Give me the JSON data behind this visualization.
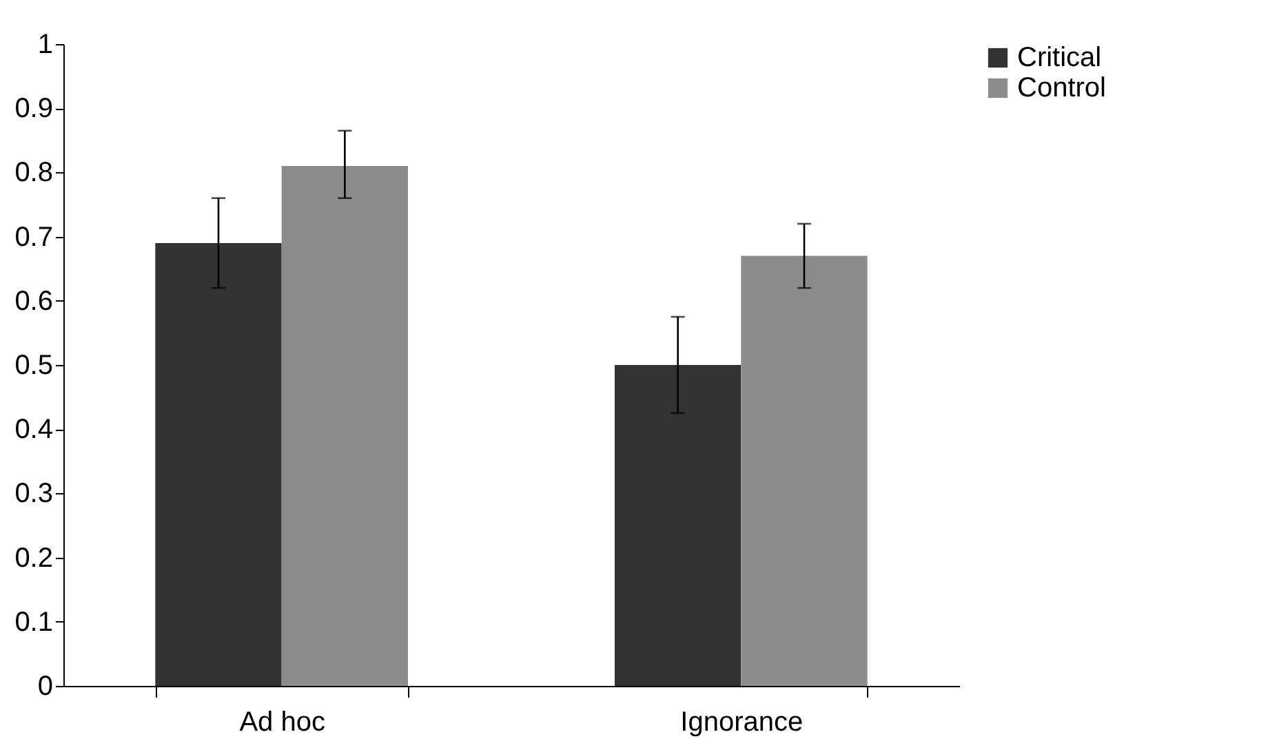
{
  "chart_data": {
    "type": "bar",
    "categories": [
      "Ad hoc",
      "Ignorance"
    ],
    "series": [
      {
        "name": "Critical",
        "color": "#333333",
        "values": [
          0.69,
          0.5
        ],
        "errors": [
          [
            0.62,
            0.76
          ],
          [
            0.425,
            0.575
          ]
        ]
      },
      {
        "name": "Control",
        "color": "#8c8c8c",
        "values": [
          0.81,
          0.67
        ],
        "errors": [
          [
            0.76,
            0.865
          ],
          [
            0.62,
            0.72
          ]
        ]
      }
    ],
    "ylim": [
      0,
      1
    ],
    "yticks": [
      0,
      0.1,
      0.2,
      0.3,
      0.4,
      0.5,
      0.6,
      0.7,
      0.8,
      0.9,
      1
    ],
    "grid": false,
    "legend": "right"
  }
}
